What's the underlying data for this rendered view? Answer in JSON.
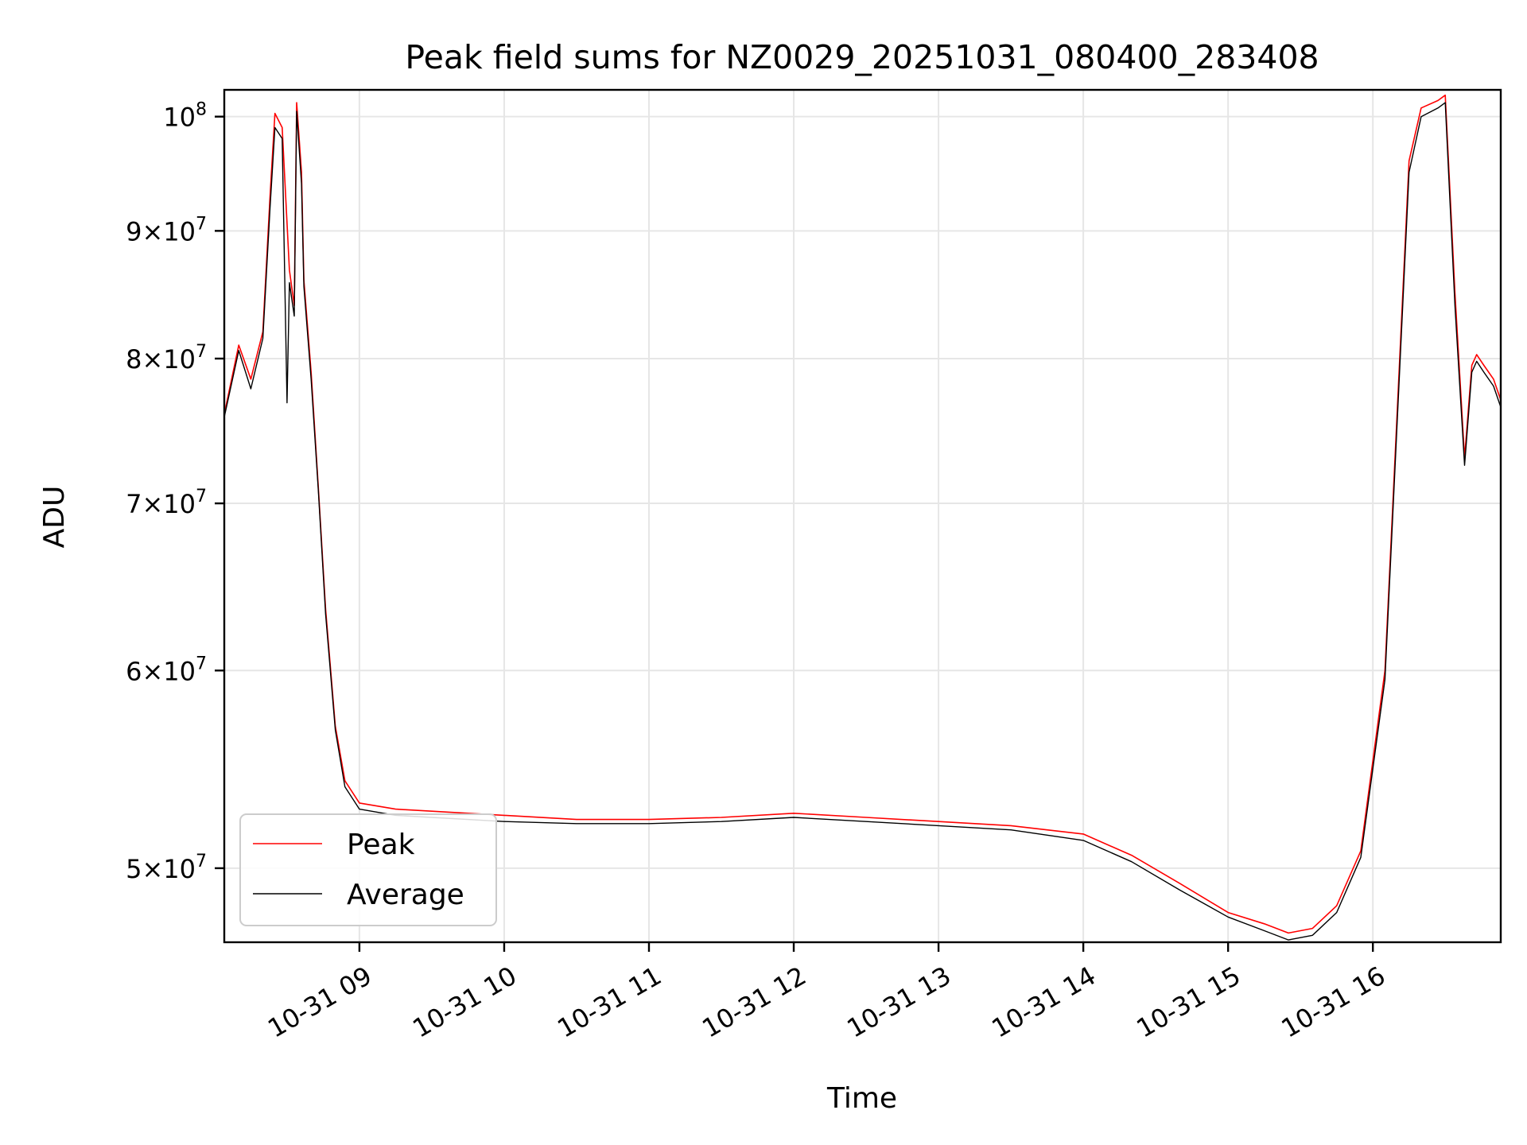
{
  "chart_data": {
    "type": "line",
    "title": "Peak field sums for NZ0029_20251031_080400_283408",
    "xlabel": "Time",
    "ylabel": "ADU",
    "yscale": "log",
    "grid": true,
    "legend_position": "lower-left",
    "xlim": [
      "2025-10-31 08:04",
      "2025-10-31 16:53"
    ],
    "ylim": [
      46700000,
      102500000
    ],
    "x_ticks": [
      {
        "value": "2025-10-31 09:00",
        "label": "10-31 09"
      },
      {
        "value": "2025-10-31 10:00",
        "label": "10-31 10"
      },
      {
        "value": "2025-10-31 11:00",
        "label": "10-31 11"
      },
      {
        "value": "2025-10-31 12:00",
        "label": "10-31 12"
      },
      {
        "value": "2025-10-31 13:00",
        "label": "10-31 13"
      },
      {
        "value": "2025-10-31 14:00",
        "label": "10-31 14"
      },
      {
        "value": "2025-10-31 15:00",
        "label": "10-31 15"
      },
      {
        "value": "2025-10-31 16:00",
        "label": "10-31 16"
      }
    ],
    "y_ticks": [
      {
        "value": 50000000,
        "mantissa": "5",
        "base": "10",
        "exp": "7"
      },
      {
        "value": 60000000,
        "mantissa": "6",
        "base": "10",
        "exp": "7"
      },
      {
        "value": 70000000,
        "mantissa": "7",
        "base": "10",
        "exp": "7"
      },
      {
        "value": 80000000,
        "mantissa": "8",
        "base": "10",
        "exp": "7"
      },
      {
        "value": 90000000,
        "mantissa": "9",
        "base": "10",
        "exp": "7"
      },
      {
        "value": 100000000,
        "mantissa": "",
        "base": "10",
        "exp": "8"
      }
    ],
    "series": [
      {
        "name": "Peak",
        "color": "#ff0000",
        "x": [
          "2025-10-31 08:04",
          "2025-10-31 08:10",
          "2025-10-31 08:15",
          "2025-10-31 08:20",
          "2025-10-31 08:23",
          "2025-10-31 08:25",
          "2025-10-31 08:28",
          "2025-10-31 08:31",
          "2025-10-31 08:33",
          "2025-10-31 08:34",
          "2025-10-31 08:36",
          "2025-10-31 08:37",
          "2025-10-31 08:40",
          "2025-10-31 08:43",
          "2025-10-31 08:46",
          "2025-10-31 08:50",
          "2025-10-31 08:54",
          "2025-10-31 09:00",
          "2025-10-31 09:15",
          "2025-10-31 09:30",
          "2025-10-31 10:00",
          "2025-10-31 10:30",
          "2025-10-31 11:00",
          "2025-10-31 11:30",
          "2025-10-31 12:00",
          "2025-10-31 12:30",
          "2025-10-31 13:00",
          "2025-10-31 13:30",
          "2025-10-31 14:00",
          "2025-10-31 14:20",
          "2025-10-31 14:40",
          "2025-10-31 15:00",
          "2025-10-31 15:15",
          "2025-10-31 15:25",
          "2025-10-31 15:35",
          "2025-10-31 15:45",
          "2025-10-31 15:55",
          "2025-10-31 16:05",
          "2025-10-31 16:15",
          "2025-10-31 16:20",
          "2025-10-31 16:27",
          "2025-10-31 16:30",
          "2025-10-31 16:34",
          "2025-10-31 16:38",
          "2025-10-31 16:41",
          "2025-10-31 16:43",
          "2025-10-31 16:46",
          "2025-10-31 16:50",
          "2025-10-31 16:53"
        ],
        "y": [
          76000000,
          81000000,
          78500000,
          82000000,
          93000000,
          100300000,
          99000000,
          86800000,
          84000000,
          101300000,
          95000000,
          86000000,
          79000000,
          71000000,
          63500000,
          57000000,
          54200000,
          53100000,
          52800000,
          52700000,
          52500000,
          52300000,
          52300000,
          52400000,
          52600000,
          52400000,
          52200000,
          52000000,
          51600000,
          50600000,
          49300000,
          48000000,
          47500000,
          47100000,
          47300000,
          48300000,
          50800000,
          60000000,
          96000000,
          100800000,
          101500000,
          102000000,
          85000000,
          73000000,
          79500000,
          80300000,
          79500000,
          78500000,
          77000000
        ]
      },
      {
        "name": "Average",
        "color": "#000000",
        "x": [
          "2025-10-31 08:04",
          "2025-10-31 08:10",
          "2025-10-31 08:15",
          "2025-10-31 08:20",
          "2025-10-31 08:23",
          "2025-10-31 08:25",
          "2025-10-31 08:28",
          "2025-10-31 08:30",
          "2025-10-31 08:31",
          "2025-10-31 08:33",
          "2025-10-31 08:34",
          "2025-10-31 08:36",
          "2025-10-31 08:37",
          "2025-10-31 08:40",
          "2025-10-31 08:43",
          "2025-10-31 08:46",
          "2025-10-31 08:50",
          "2025-10-31 08:54",
          "2025-10-31 09:00",
          "2025-10-31 09:15",
          "2025-10-31 09:30",
          "2025-10-31 10:00",
          "2025-10-31 10:30",
          "2025-10-31 11:00",
          "2025-10-31 11:30",
          "2025-10-31 12:00",
          "2025-10-31 12:30",
          "2025-10-31 13:00",
          "2025-10-31 13:30",
          "2025-10-31 14:00",
          "2025-10-31 14:20",
          "2025-10-31 14:40",
          "2025-10-31 15:00",
          "2025-10-31 15:15",
          "2025-10-31 15:25",
          "2025-10-31 15:35",
          "2025-10-31 15:45",
          "2025-10-31 15:55",
          "2025-10-31 16:05",
          "2025-10-31 16:15",
          "2025-10-31 16:20",
          "2025-10-31 16:27",
          "2025-10-31 16:30",
          "2025-10-31 16:34",
          "2025-10-31 16:38",
          "2025-10-31 16:41",
          "2025-10-31 16:43",
          "2025-10-31 16:46",
          "2025-10-31 16:50",
          "2025-10-31 16:53"
        ],
        "y": [
          75800000,
          80600000,
          77800000,
          81500000,
          92000000,
          99000000,
          98000000,
          76800000,
          85800000,
          83200000,
          100500000,
          94000000,
          85500000,
          78500000,
          70800000,
          63200000,
          56800000,
          53900000,
          52800000,
          52500000,
          52400000,
          52200000,
          52100000,
          52100000,
          52200000,
          52400000,
          52200000,
          52000000,
          51800000,
          51300000,
          50300000,
          49000000,
          47800000,
          47200000,
          46800000,
          47000000,
          48000000,
          50500000,
          59500000,
          95000000,
          100000000,
          100800000,
          101300000,
          84000000,
          72500000,
          79000000,
          79800000,
          79000000,
          78000000,
          76500000
        ]
      }
    ]
  }
}
